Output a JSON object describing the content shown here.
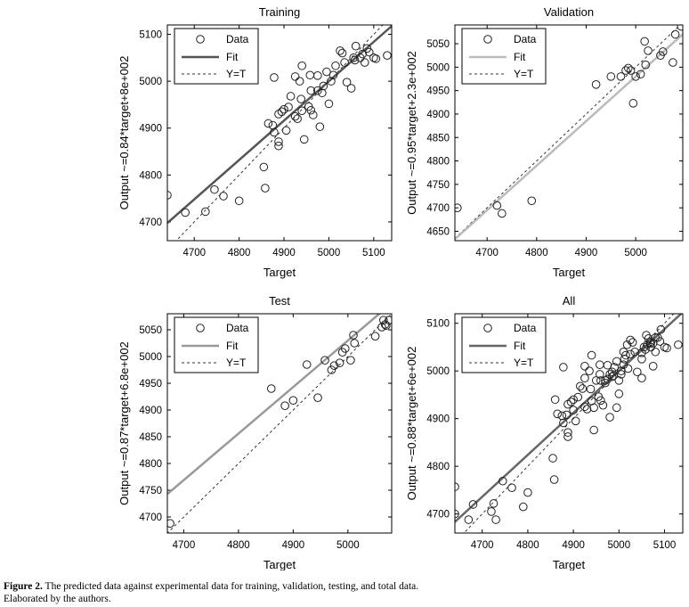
{
  "caption": {
    "label": "Figure 2.",
    "text": "The predicted data against experimental data for training, validation, testing, and total data.",
    "source": "Elaborated by the authors."
  },
  "legend_labels": {
    "data": "Data",
    "fit": "Fit",
    "yt": "Y=T"
  },
  "colors": {
    "training_fit": "#555555",
    "validation_fit": "#bbbbbb",
    "test_fit": "#999999",
    "all_fit": "#666666",
    "yt": "#333333",
    "marker": "#222222"
  },
  "chart_data": [
    {
      "type": "scatter",
      "title": "Training",
      "xlabel": "Target",
      "ylabel": "Output ~=0.84*target+8e+002",
      "xlim": [
        4640,
        5140
      ],
      "ylim": [
        4660,
        5120
      ],
      "xticks": [
        4700,
        4800,
        4900,
        5000,
        5100
      ],
      "yticks": [
        4700,
        4800,
        4900,
        5000,
        5100
      ],
      "fit": {
        "slope": 0.84,
        "intercept": 800
      },
      "legend": [
        "Data",
        "Fit",
        "Y=T"
      ],
      "points": [
        [
          4640,
          4757
        ],
        [
          4680,
          4720
        ],
        [
          4725,
          4722
        ],
        [
          4745,
          4769
        ],
        [
          4765,
          4755
        ],
        [
          4800,
          4745
        ],
        [
          4855,
          4817
        ],
        [
          4858,
          4772
        ],
        [
          4865,
          4910
        ],
        [
          4875,
          4906
        ],
        [
          4878,
          4891
        ],
        [
          4878,
          5008
        ],
        [
          4888,
          4862
        ],
        [
          4888,
          4871
        ],
        [
          4888,
          4930
        ],
        [
          4895,
          4935
        ],
        [
          4900,
          4940
        ],
        [
          4905,
          4895
        ],
        [
          4910,
          4945
        ],
        [
          4915,
          4968
        ],
        [
          4925,
          4925
        ],
        [
          4925,
          5010
        ],
        [
          4930,
          4920
        ],
        [
          4935,
          5000
        ],
        [
          4938,
          4962
        ],
        [
          4940,
          4937
        ],
        [
          4940,
          5033
        ],
        [
          4945,
          4876
        ],
        [
          4955,
          4946
        ],
        [
          4958,
          5013
        ],
        [
          4960,
          4938
        ],
        [
          4960,
          4980
        ],
        [
          4965,
          4928
        ],
        [
          4975,
          5012
        ],
        [
          4975,
          4980
        ],
        [
          4980,
          4903
        ],
        [
          4985,
          4975
        ],
        [
          4988,
          4990
        ],
        [
          4995,
          5020
        ],
        [
          5000,
          4952
        ],
        [
          5005,
          5000
        ],
        [
          5010,
          5013
        ],
        [
          5015,
          5033
        ],
        [
          5025,
          5065
        ],
        [
          5030,
          5060
        ],
        [
          5035,
          5040
        ],
        [
          5040,
          4998
        ],
        [
          5050,
          4985
        ],
        [
          5055,
          5050
        ],
        [
          5058,
          5045
        ],
        [
          5060,
          5075
        ],
        [
          5070,
          5050
        ],
        [
          5075,
          5058
        ],
        [
          5080,
          5040
        ],
        [
          5085,
          5070
        ],
        [
          5090,
          5062
        ],
        [
          5100,
          5050
        ],
        [
          5105,
          5048
        ],
        [
          5130,
          5055
        ]
      ]
    },
    {
      "type": "scatter",
      "title": "Validation",
      "xlabel": "Target",
      "ylabel": "Output ~=0.95*target+2.3e+002",
      "xlim": [
        4635,
        5095
      ],
      "ylim": [
        4630,
        5090
      ],
      "xticks": [
        4700,
        4800,
        4900,
        5000
      ],
      "yticks": [
        4650,
        4700,
        4750,
        4800,
        4850,
        4900,
        4950,
        5000,
        5050
      ],
      "fit": {
        "slope": 0.95,
        "intercept": 230
      },
      "legend": [
        "Data",
        "Fit",
        "Y=T"
      ],
      "points": [
        [
          4640,
          4700
        ],
        [
          4720,
          4705
        ],
        [
          4730,
          4688
        ],
        [
          4790,
          4715
        ],
        [
          4920,
          4963
        ],
        [
          4950,
          4980
        ],
        [
          4970,
          4980
        ],
        [
          4980,
          4993
        ],
        [
          4985,
          4998
        ],
        [
          4990,
          4993
        ],
        [
          4995,
          4923
        ],
        [
          5000,
          4980
        ],
        [
          5010,
          4985
        ],
        [
          5018,
          5055
        ],
        [
          5020,
          5005
        ],
        [
          5025,
          5035
        ],
        [
          5050,
          5025
        ],
        [
          5055,
          5033
        ],
        [
          5075,
          5010
        ],
        [
          5080,
          5070
        ],
        [
          5092,
          5087
        ]
      ]
    },
    {
      "type": "scatter",
      "title": "Test",
      "xlabel": "Target",
      "ylabel": "Output ~=0.87*target+6.8e+002",
      "xlim": [
        4670,
        5080
      ],
      "ylim": [
        4670,
        5080
      ],
      "xticks": [
        4700,
        4800,
        4900,
        5000
      ],
      "yticks": [
        4700,
        4750,
        4800,
        4850,
        4900,
        4950,
        5000,
        5050
      ],
      "fit": {
        "slope": 0.87,
        "intercept": 680
      },
      "legend": [
        "Data",
        "Fit",
        "Y=T"
      ],
      "points": [
        [
          4675,
          4688
        ],
        [
          4860,
          4940
        ],
        [
          4885,
          4908
        ],
        [
          4900,
          4918
        ],
        [
          4925,
          4985
        ],
        [
          4945,
          4923
        ],
        [
          4958,
          4993
        ],
        [
          4970,
          4975
        ],
        [
          4975,
          4983
        ],
        [
          4985,
          4988
        ],
        [
          4990,
          5008
        ],
        [
          4995,
          5015
        ],
        [
          5005,
          4993
        ],
        [
          5010,
          5040
        ],
        [
          5012,
          5025
        ],
        [
          5050,
          5038
        ],
        [
          5062,
          5055
        ],
        [
          5065,
          5068
        ],
        [
          5068,
          5060
        ],
        [
          5070,
          5058
        ],
        [
          5075,
          5068
        ]
      ]
    },
    {
      "type": "scatter",
      "title": "All",
      "xlabel": "Target",
      "ylabel": "Output ~=0.88*target+6e+002",
      "xlim": [
        4640,
        5140
      ],
      "ylim": [
        4660,
        5120
      ],
      "xticks": [
        4700,
        4800,
        4900,
        5000,
        5100
      ],
      "yticks": [
        4700,
        4800,
        4900,
        5000,
        5100
      ],
      "fit": {
        "slope": 0.88,
        "intercept": 600
      },
      "legend": [
        "Data",
        "Fit",
        "Y=T"
      ],
      "points": [
        [
          4640,
          4757
        ],
        [
          4640,
          4700
        ],
        [
          4670,
          4688
        ],
        [
          4680,
          4720
        ],
        [
          4720,
          4705
        ],
        [
          4725,
          4722
        ],
        [
          4730,
          4688
        ],
        [
          4745,
          4769
        ],
        [
          4765,
          4755
        ],
        [
          4790,
          4715
        ],
        [
          4800,
          4745
        ],
        [
          4855,
          4817
        ],
        [
          4858,
          4772
        ],
        [
          4860,
          4940
        ],
        [
          4865,
          4910
        ],
        [
          4875,
          4906
        ],
        [
          4878,
          4891
        ],
        [
          4878,
          5008
        ],
        [
          4885,
          4908
        ],
        [
          4888,
          4862
        ],
        [
          4888,
          4871
        ],
        [
          4888,
          4930
        ],
        [
          4895,
          4935
        ],
        [
          4900,
          4918
        ],
        [
          4900,
          4940
        ],
        [
          4905,
          4895
        ],
        [
          4910,
          4945
        ],
        [
          4915,
          4968
        ],
        [
          4920,
          4963
        ],
        [
          4925,
          4925
        ],
        [
          4925,
          4985
        ],
        [
          4925,
          5010
        ],
        [
          4930,
          4920
        ],
        [
          4935,
          5000
        ],
        [
          4938,
          4962
        ],
        [
          4940,
          4937
        ],
        [
          4940,
          5033
        ],
        [
          4945,
          4876
        ],
        [
          4945,
          4923
        ],
        [
          4950,
          4980
        ],
        [
          4955,
          4946
        ],
        [
          4958,
          4993
        ],
        [
          4958,
          5013
        ],
        [
          4960,
          4938
        ],
        [
          4960,
          4980
        ],
        [
          4965,
          4928
        ],
        [
          4970,
          4975
        ],
        [
          4970,
          4980
        ],
        [
          4975,
          5012
        ],
        [
          4975,
          4983
        ],
        [
          4980,
          4903
        ],
        [
          4980,
          4993
        ],
        [
          4985,
          4988
        ],
        [
          4985,
          4998
        ],
        [
          4988,
          4990
        ],
        [
          4990,
          5008
        ],
        [
          4995,
          5020
        ],
        [
          4995,
          4923
        ],
        [
          5000,
          4952
        ],
        [
          5000,
          4980
        ],
        [
          5005,
          5000
        ],
        [
          5005,
          4993
        ],
        [
          5010,
          5013
        ],
        [
          5010,
          5040
        ],
        [
          5012,
          5025
        ],
        [
          5015,
          5033
        ],
        [
          5018,
          5055
        ],
        [
          5020,
          5005
        ],
        [
          5025,
          5065
        ],
        [
          5025,
          5035
        ],
        [
          5030,
          5060
        ],
        [
          5035,
          5040
        ],
        [
          5040,
          4998
        ],
        [
          5050,
          4985
        ],
        [
          5050,
          5025
        ],
        [
          5050,
          5038
        ],
        [
          5055,
          5050
        ],
        [
          5058,
          5045
        ],
        [
          5060,
          5075
        ],
        [
          5062,
          5055
        ],
        [
          5065,
          5068
        ],
        [
          5068,
          5060
        ],
        [
          5070,
          5050
        ],
        [
          5070,
          5058
        ],
        [
          5075,
          5058
        ],
        [
          5075,
          5010
        ],
        [
          5080,
          5040
        ],
        [
          5080,
          5070
        ],
        [
          5085,
          5070
        ],
        [
          5090,
          5062
        ],
        [
          5092,
          5087
        ],
        [
          5100,
          5050
        ],
        [
          5105,
          5048
        ],
        [
          5130,
          5055
        ]
      ]
    }
  ]
}
